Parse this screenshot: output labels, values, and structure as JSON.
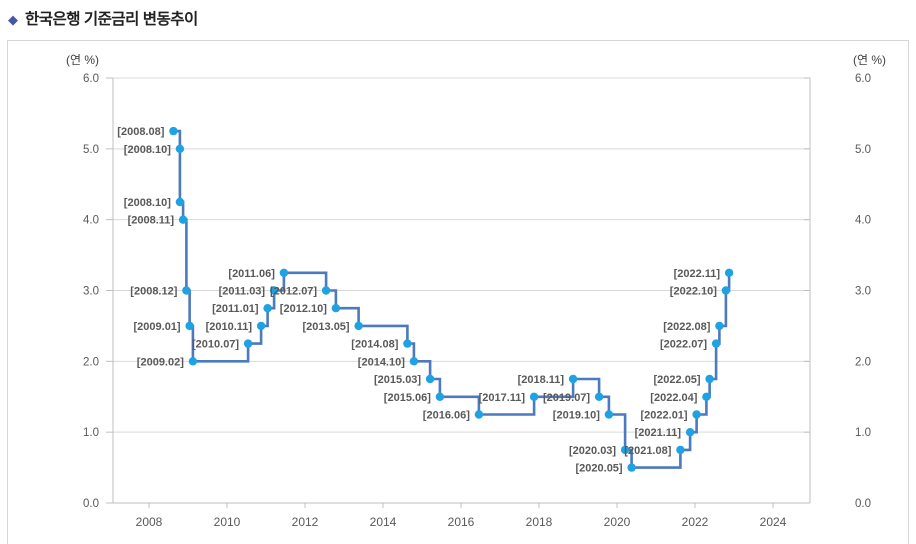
{
  "header": {
    "bullet": "◆",
    "title": "한국은행 기준금리 변동추이"
  },
  "chart_data": {
    "type": "line",
    "step": true,
    "title": "한국은행 기준금리 변동추이",
    "unit_label_left": "(연 %)",
    "unit_label_right": "(연 %)",
    "ylim": [
      0.0,
      6.0
    ],
    "y_ticks": [
      0,
      1,
      2,
      3,
      4,
      5,
      6
    ],
    "y_tick_labels": [
      "0.0",
      "1.0",
      "2.0",
      "3.0",
      "4.0",
      "5.0",
      "6.0"
    ],
    "x_ticks": [
      2008,
      2010,
      2012,
      2014,
      2016,
      2018,
      2020,
      2022,
      2024
    ],
    "x_tick_labels": [
      "2008",
      "2010",
      "2012",
      "2014",
      "2016",
      "2018",
      "2020",
      "2022",
      "2024"
    ],
    "xlim": [
      2007.1,
      2024.95
    ],
    "grid": "horizontal",
    "legend": "none",
    "point_label_format": "[YYYY.MM]",
    "series": [
      {
        "name": "기준금리",
        "points": [
          {
            "date": "2008.08",
            "value": 5.25
          },
          {
            "date": "2008.10",
            "value": 5.0
          },
          {
            "date": "2008.10",
            "value": 4.25
          },
          {
            "date": "2008.11",
            "value": 4.0
          },
          {
            "date": "2008.12",
            "value": 3.0
          },
          {
            "date": "2009.01",
            "value": 2.5
          },
          {
            "date": "2009.02",
            "value": 2.0
          },
          {
            "date": "2010.07",
            "value": 2.25
          },
          {
            "date": "2010.11",
            "value": 2.5
          },
          {
            "date": "2011.01",
            "value": 2.75
          },
          {
            "date": "2011.03",
            "value": 3.0
          },
          {
            "date": "2011.06",
            "value": 3.25
          },
          {
            "date": "2012.07",
            "value": 3.0
          },
          {
            "date": "2012.10",
            "value": 2.75
          },
          {
            "date": "2013.05",
            "value": 2.5
          },
          {
            "date": "2014.08",
            "value": 2.25
          },
          {
            "date": "2014.10",
            "value": 2.0
          },
          {
            "date": "2015.03",
            "value": 1.75
          },
          {
            "date": "2015.06",
            "value": 1.5
          },
          {
            "date": "2016.06",
            "value": 1.25
          },
          {
            "date": "2017.11",
            "value": 1.5
          },
          {
            "date": "2018.11",
            "value": 1.75
          },
          {
            "date": "2019.07",
            "value": 1.5
          },
          {
            "date": "2019.10",
            "value": 1.25
          },
          {
            "date": "2020.03",
            "value": 0.75
          },
          {
            "date": "2020.05",
            "value": 0.5
          },
          {
            "date": "2021.08",
            "value": 0.75
          },
          {
            "date": "2021.11",
            "value": 1.0
          },
          {
            "date": "2022.01",
            "value": 1.25
          },
          {
            "date": "2022.04",
            "value": 1.5
          },
          {
            "date": "2022.05",
            "value": 1.75
          },
          {
            "date": "2022.07",
            "value": 2.25
          },
          {
            "date": "2022.08",
            "value": 2.5
          },
          {
            "date": "2022.10",
            "value": 3.0
          },
          {
            "date": "2022.11",
            "value": 3.25
          }
        ]
      }
    ],
    "colors": {
      "line": "#4d79be",
      "marker": "#1da2e4",
      "grid": "#d9d9d9",
      "axis": "#bfbfbf",
      "tick_label": "#595959",
      "point_label": "#595959",
      "title": "#222222",
      "bullet": "#4757a8",
      "box_border": "#d6d6d6"
    }
  }
}
